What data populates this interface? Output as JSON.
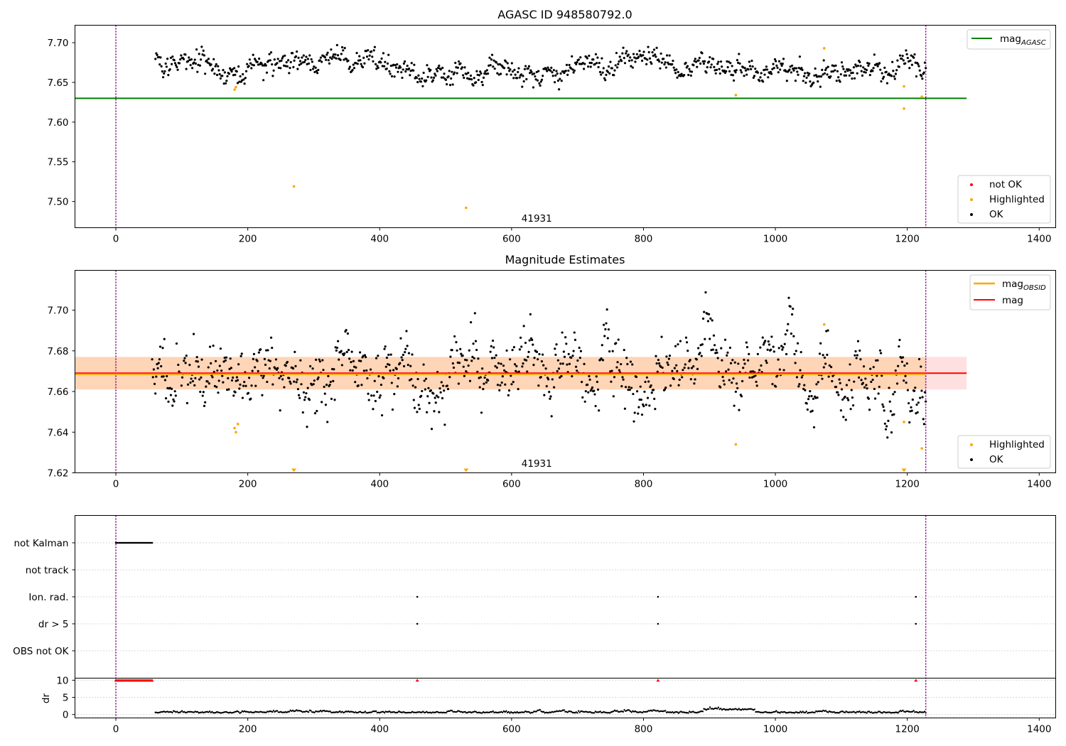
{
  "chart_data": [
    {
      "type": "scatter",
      "title": "AGASC ID 948580792.0",
      "xlim": [
        -62,
        1425
      ],
      "ylim": [
        7.467,
        7.722
      ],
      "x_ticks": [
        0,
        200,
        400,
        600,
        800,
        1000,
        1200,
        1400
      ],
      "x_tick_labels": [
        "0",
        "200",
        "400",
        "600",
        "800",
        "1000",
        "1200",
        "1400"
      ],
      "y_ticks": [
        7.5,
        7.55,
        7.6,
        7.65,
        7.7
      ],
      "y_tick_labels": [
        "7.50",
        "7.55",
        "7.60",
        "7.65",
        "7.70"
      ],
      "vlines": [
        0,
        1228
      ],
      "obsid_label": "41931",
      "obsid_x": 615,
      "mag_agasc": 7.63,
      "mag_agasc_range": [
        -62,
        1290
      ],
      "ok_series": {
        "x_start": 60,
        "x_end": 1228,
        "n": 900,
        "center": 7.67,
        "spread": 0.01,
        "seed": 7
      },
      "highlighted_points": [
        [
          180,
          7.641
        ],
        [
          182,
          7.644
        ],
        [
          270,
          7.519
        ],
        [
          531,
          7.492
        ],
        [
          940,
          7.634
        ],
        [
          1074,
          7.693
        ],
        [
          1195,
          7.645
        ],
        [
          1195,
          7.617
        ],
        [
          1222,
          7.632
        ]
      ],
      "not_ok_points": [],
      "legend_upper": {
        "entries": [
          {
            "label": "mag",
            "sub": "AGASC",
            "color": "#008000"
          }
        ]
      },
      "legend_lower": {
        "entries": [
          {
            "label": "not OK",
            "color": "#ff0000"
          },
          {
            "label": "Highlighted",
            "color": "#ffa500"
          },
          {
            "label": "OK",
            "color": "#000000"
          }
        ]
      }
    },
    {
      "type": "scatter",
      "title": "Magnitude Estimates",
      "xlim": [
        -62,
        1425
      ],
      "ylim": [
        7.62,
        7.7196
      ],
      "x_ticks": [
        0,
        200,
        400,
        600,
        800,
        1000,
        1200,
        1400
      ],
      "x_tick_labels": [
        "0",
        "200",
        "400",
        "600",
        "800",
        "1000",
        "1200",
        "1400"
      ],
      "y_ticks": [
        7.62,
        7.64,
        7.66,
        7.68,
        7.7
      ],
      "y_tick_labels": [
        "7.62",
        "7.64",
        "7.66",
        "7.68",
        "7.70"
      ],
      "vlines": [
        0,
        1228
      ],
      "obsid_label": "41931",
      "obsid_x": 615,
      "mag": 7.669,
      "mag_band": [
        7.661,
        7.677
      ],
      "mag_obsid": 7.6685,
      "mag_obsid_band": [
        7.661,
        7.677
      ],
      "mag_obsid_range": [
        -62,
        1228
      ],
      "mag_range": [
        -62,
        1290
      ],
      "ok_series": {
        "x_start": 55,
        "x_end": 1228,
        "n": 950,
        "center": 7.669,
        "spread": 0.011,
        "seed": 11
      },
      "highlighted_points": [
        [
          180,
          7.642
        ],
        [
          182,
          7.64
        ],
        [
          185,
          7.644
        ],
        [
          940,
          7.634
        ],
        [
          1074,
          7.693
        ],
        [
          1195,
          7.645
        ],
        [
          1222,
          7.632
        ]
      ],
      "clipped_markers": [
        270,
        531,
        1195
      ],
      "legend_upper": {
        "entries": [
          {
            "label": "mag",
            "sub": "OBSID",
            "color": "#ffa500"
          },
          {
            "label": "mag",
            "sub": "",
            "color": "#ff0000"
          }
        ]
      },
      "legend_lower": {
        "entries": [
          {
            "label": "Highlighted",
            "color": "#ffa500"
          },
          {
            "label": "OK",
            "color": "#000000"
          }
        ]
      }
    },
    {
      "type": "scatter",
      "title": "",
      "xlim": [
        -62,
        1425
      ],
      "x_ticks": [
        0,
        200,
        400,
        600,
        800,
        1000,
        1200,
        1400
      ],
      "x_tick_labels": [
        "0",
        "200",
        "400",
        "600",
        "800",
        "1000",
        "1200",
        "1400"
      ],
      "flag_rows": [
        "not Kalman",
        "not track",
        "Ion. rad.",
        "dr > 5",
        "OBS not OK"
      ],
      "vlines": [
        0,
        1228
      ],
      "flags": {
        "not Kalman": {
          "x_start": 0,
          "x_end": 55,
          "n": 28
        },
        "not track": [],
        "Ion. rad.": [
          457,
          822,
          1213
        ],
        "dr > 5": [
          457,
          822,
          1213
        ],
        "OBS not OK": []
      },
      "dr_panel": {
        "ylabel": "dr",
        "ylim": [
          -1,
          10.6
        ],
        "y_ticks": [
          0,
          5,
          10
        ],
        "y_tick_labels": [
          "0",
          "5",
          "10"
        ],
        "clipped_x": {
          "x_start": 0,
          "x_end": 55,
          "n": 28,
          "value": 10
        },
        "clipped_extra": [
          457,
          822,
          1213
        ],
        "series": {
          "x_start": 60,
          "x_end": 1228,
          "n": 640,
          "base": 0.4,
          "seed": 3
        }
      }
    }
  ]
}
